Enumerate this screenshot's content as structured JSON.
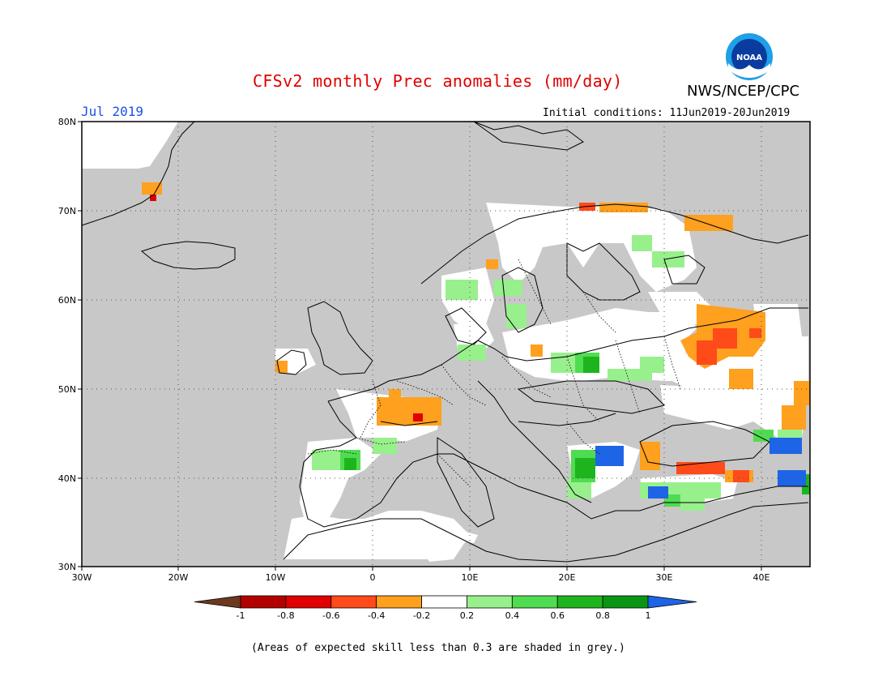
{
  "header": {
    "title": "CFSv2 monthly Prec anomalies (mm/day)",
    "month": "Jul 2019",
    "initial_conditions": "Initial conditions: 11Jun2019-20Jun2019",
    "org": "NWS/NCEP/CPC",
    "logo_text": "NOAA"
  },
  "map": {
    "lat_labels": [
      "80N",
      "70N",
      "60N",
      "50N",
      "40N",
      "30N"
    ],
    "lon_labels": [
      "30W",
      "20W",
      "10W",
      "0",
      "10E",
      "20E",
      "30E",
      "40E"
    ],
    "region": "Europe",
    "skill_mask_color": "#c8c8c8"
  },
  "colorbar": {
    "tick_labels": [
      "-1",
      "-0.8",
      "-0.6",
      "-0.4",
      "-0.2",
      "0.2",
      "0.4",
      "0.6",
      "0.8",
      "1"
    ],
    "colors": [
      "#6b3a1e",
      "#b50000",
      "#e00000",
      "#ff4a1a",
      "#ffa01e",
      "#ffffff",
      "#98f08c",
      "#50dc50",
      "#1eb41e",
      "#0a9614",
      "#1e64e6"
    ]
  },
  "footnote": "(Areas of expected skill less than 0.3 are shaded in grey.)"
}
